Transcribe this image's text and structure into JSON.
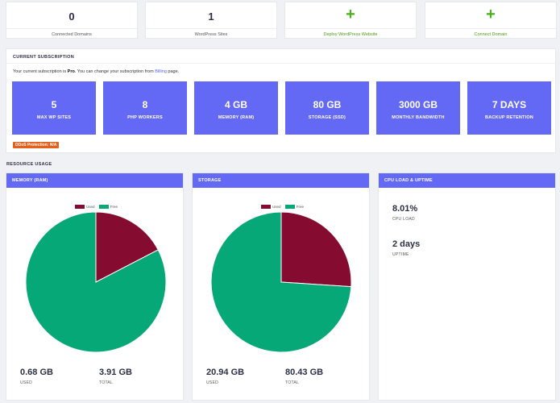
{
  "stats": [
    {
      "value": "0",
      "label": "Connected Domains"
    },
    {
      "value": "1",
      "label": "WordPress Sites"
    },
    {
      "value": "+",
      "label": "Deploy WordPress Website"
    },
    {
      "value": "+",
      "label": "Connect Domain"
    }
  ],
  "subscription": {
    "title": "CURRENT SUBSCRIPTION",
    "desc_prefix": "Your current subscription is ",
    "plan": "Pro",
    "desc_mid": ". You can change your subscription from ",
    "billing_link": "Billing",
    "desc_suffix": " page.",
    "tiles": [
      {
        "value": "5",
        "label": "MAX WP SITES"
      },
      {
        "value": "8",
        "label": "PHP WORKERS"
      },
      {
        "value": "4 GB",
        "label": "MEMORY (RAM)"
      },
      {
        "value": "80 GB",
        "label": "STORAGE (SSD)"
      },
      {
        "value": "3000 GB",
        "label": "MONTHLY BANDWIDTH"
      },
      {
        "value": "7 DAYS",
        "label": "BACKUP RETENTION"
      }
    ],
    "ddos_badge": "DDoS Protection: N/A"
  },
  "resource_usage": {
    "title": "RESOURCE USAGE",
    "memory": {
      "title": "MEMORY (RAM)",
      "legend_used": "Used",
      "legend_free": "Free",
      "used_value": "0.68 GB",
      "used_label": "USED",
      "total_value": "3.91 GB",
      "total_label": "TOTAL",
      "used_fraction": 0.1739
    },
    "storage": {
      "title": "STORAGE",
      "legend_used": "Used",
      "legend_free": "Free",
      "used_value": "20.94 GB",
      "used_label": "USED",
      "total_value": "80.43 GB",
      "total_label": "TOTAL",
      "used_fraction": 0.2604
    },
    "cpu": {
      "title": "CPU LOAD & UPTIME",
      "load_value": "8.01%",
      "load_label": "CPU LOAD",
      "uptime_value": "2 days",
      "uptime_label": "UPTIME"
    }
  },
  "colors": {
    "used": "#850b30",
    "free": "#06a877",
    "accent": "#6469f5",
    "badge": "#e4601c",
    "plus": "#4caf1e"
  },
  "chart_data": [
    {
      "type": "pie",
      "title": "MEMORY (RAM)",
      "categories": [
        "Used",
        "Free"
      ],
      "values": [
        0.68,
        3.23
      ]
    },
    {
      "type": "pie",
      "title": "STORAGE",
      "categories": [
        "Used",
        "Free"
      ],
      "values": [
        20.94,
        59.49
      ]
    }
  ]
}
